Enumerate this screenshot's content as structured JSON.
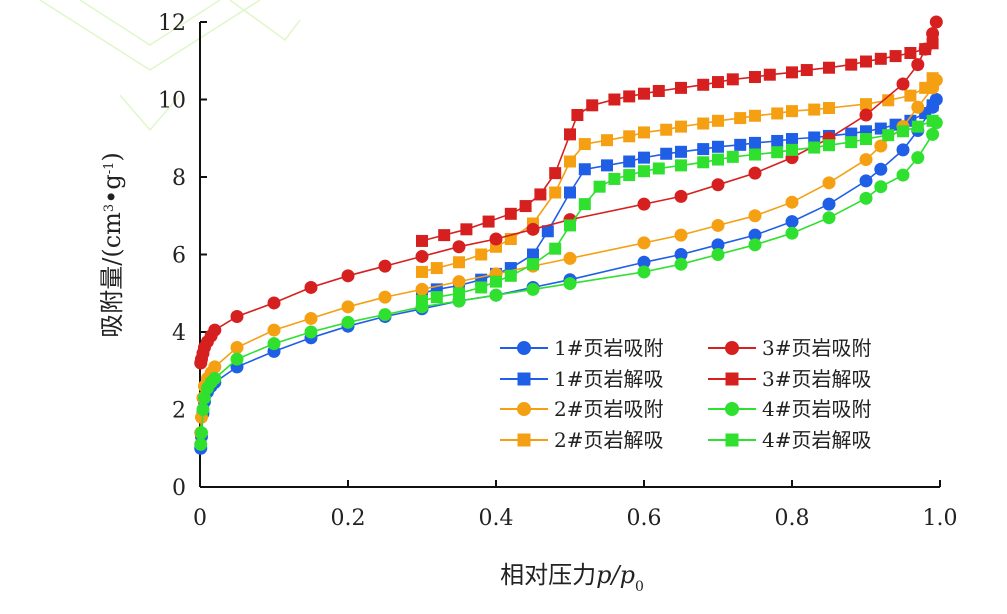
{
  "chart_data": {
    "type": "line",
    "title": "",
    "xlabel": "相对压力",
    "xlabel_italic": "p/p",
    "xlabel_sub": "0",
    "ylabel": "吸附量/(cm",
    "ylabel_sup1": "3",
    "ylabel_mid": "•g",
    "ylabel_sup2": "-1",
    "ylabel_end": ")",
    "xlim": [
      0,
      1.0
    ],
    "ylim": [
      0,
      12
    ],
    "xticks": [
      "0",
      "0.2",
      "0.4",
      "0.6",
      "0.8",
      "1.0"
    ],
    "yticks": [
      "0",
      "2",
      "4",
      "6",
      "8",
      "10",
      "12"
    ],
    "xtick_values": [
      0,
      0.2,
      0.4,
      0.6,
      0.8,
      1.0
    ],
    "ytick_values": [
      0,
      2,
      4,
      6,
      8,
      10,
      12
    ],
    "legend_position": "bottom-right",
    "series": [
      {
        "name": "1#页岩吸附",
        "color": "#1f5fe6",
        "marker": "circle",
        "x": [
          0.001,
          0.002,
          0.004,
          0.006,
          0.01,
          0.015,
          0.02,
          0.05,
          0.1,
          0.15,
          0.2,
          0.25,
          0.3,
          0.35,
          0.4,
          0.45,
          0.5,
          0.6,
          0.65,
          0.7,
          0.75,
          0.8,
          0.85,
          0.9,
          0.92,
          0.95,
          0.97,
          0.99,
          0.995
        ],
        "y": [
          1.0,
          1.3,
          1.9,
          2.2,
          2.45,
          2.6,
          2.7,
          3.1,
          3.5,
          3.85,
          4.15,
          4.4,
          4.6,
          4.8,
          4.95,
          5.15,
          5.35,
          5.8,
          6.0,
          6.25,
          6.5,
          6.85,
          7.3,
          7.9,
          8.2,
          8.7,
          9.2,
          9.8,
          10.0
        ]
      },
      {
        "name": "1#页岩解吸",
        "color": "#1f5fe6",
        "marker": "square",
        "x": [
          0.3,
          0.32,
          0.35,
          0.38,
          0.4,
          0.42,
          0.45,
          0.47,
          0.5,
          0.52,
          0.55,
          0.58,
          0.6,
          0.63,
          0.65,
          0.68,
          0.7,
          0.73,
          0.75,
          0.78,
          0.8,
          0.83,
          0.85,
          0.88,
          0.9,
          0.92,
          0.94,
          0.96,
          0.98,
          0.99
        ],
        "y": [
          5.0,
          5.1,
          5.2,
          5.35,
          5.5,
          5.65,
          6.0,
          6.6,
          7.6,
          8.2,
          8.3,
          8.4,
          8.5,
          8.6,
          8.65,
          8.72,
          8.78,
          8.83,
          8.88,
          8.93,
          8.98,
          9.02,
          9.06,
          9.12,
          9.18,
          9.25,
          9.35,
          9.45,
          9.65,
          9.85
        ]
      },
      {
        "name": "2#页岩吸附",
        "color": "#f5a012",
        "marker": "circle",
        "x": [
          0.001,
          0.002,
          0.004,
          0.006,
          0.01,
          0.015,
          0.02,
          0.05,
          0.1,
          0.15,
          0.2,
          0.25,
          0.3,
          0.35,
          0.4,
          0.45,
          0.5,
          0.6,
          0.65,
          0.7,
          0.75,
          0.8,
          0.85,
          0.9,
          0.92,
          0.95,
          0.97,
          0.99,
          0.995
        ],
        "y": [
          1.4,
          1.8,
          2.3,
          2.6,
          2.8,
          2.95,
          3.1,
          3.6,
          4.05,
          4.35,
          4.65,
          4.9,
          5.1,
          5.3,
          5.5,
          5.7,
          5.9,
          6.3,
          6.5,
          6.75,
          7.0,
          7.35,
          7.85,
          8.45,
          8.8,
          9.3,
          9.8,
          10.3,
          10.5
        ]
      },
      {
        "name": "2#页岩解吸",
        "color": "#f5a012",
        "marker": "square",
        "x": [
          0.3,
          0.32,
          0.35,
          0.38,
          0.4,
          0.42,
          0.45,
          0.48,
          0.5,
          0.52,
          0.55,
          0.58,
          0.6,
          0.63,
          0.65,
          0.68,
          0.7,
          0.73,
          0.75,
          0.78,
          0.8,
          0.83,
          0.85,
          0.9,
          0.93,
          0.96,
          0.98,
          0.99
        ],
        "y": [
          5.55,
          5.65,
          5.8,
          6.0,
          6.2,
          6.4,
          6.8,
          7.6,
          8.4,
          8.85,
          8.95,
          9.05,
          9.15,
          9.22,
          9.3,
          9.38,
          9.45,
          9.52,
          9.58,
          9.64,
          9.7,
          9.74,
          9.78,
          9.88,
          9.98,
          10.1,
          10.3,
          10.55
        ]
      },
      {
        "name": "3#页岩吸附",
        "color": "#d62020",
        "marker": "circle",
        "x": [
          0.001,
          0.002,
          0.004,
          0.006,
          0.01,
          0.015,
          0.02,
          0.05,
          0.1,
          0.15,
          0.2,
          0.25,
          0.3,
          0.35,
          0.4,
          0.45,
          0.5,
          0.6,
          0.65,
          0.7,
          0.75,
          0.8,
          0.85,
          0.9,
          0.95,
          0.97,
          0.98,
          0.99,
          0.995
        ],
        "y": [
          3.2,
          3.3,
          3.45,
          3.6,
          3.75,
          3.9,
          4.05,
          4.4,
          4.75,
          5.15,
          5.45,
          5.7,
          5.95,
          6.2,
          6.4,
          6.65,
          6.9,
          7.3,
          7.5,
          7.8,
          8.1,
          8.5,
          9.0,
          9.6,
          10.4,
          10.9,
          11.3,
          11.7,
          12.0
        ]
      },
      {
        "name": "3#页岩解吸",
        "color": "#d62020",
        "marker": "square",
        "x": [
          0.3,
          0.33,
          0.36,
          0.39,
          0.42,
          0.44,
          0.46,
          0.48,
          0.5,
          0.51,
          0.53,
          0.56,
          0.58,
          0.6,
          0.62,
          0.65,
          0.68,
          0.7,
          0.72,
          0.75,
          0.77,
          0.8,
          0.82,
          0.85,
          0.88,
          0.9,
          0.92,
          0.94,
          0.96,
          0.98,
          0.99
        ],
        "y": [
          6.35,
          6.5,
          6.65,
          6.85,
          7.05,
          7.25,
          7.55,
          8.1,
          9.1,
          9.6,
          9.85,
          10.0,
          10.08,
          10.15,
          10.22,
          10.3,
          10.38,
          10.45,
          10.52,
          10.58,
          10.64,
          10.7,
          10.76,
          10.82,
          10.9,
          10.98,
          11.05,
          11.12,
          11.2,
          11.3,
          11.45
        ]
      },
      {
        "name": "4#页岩吸附",
        "color": "#2fe02f",
        "marker": "circle",
        "x": [
          0.001,
          0.002,
          0.004,
          0.006,
          0.01,
          0.015,
          0.02,
          0.05,
          0.1,
          0.15,
          0.2,
          0.25,
          0.3,
          0.35,
          0.4,
          0.45,
          0.5,
          0.6,
          0.65,
          0.7,
          0.75,
          0.8,
          0.85,
          0.9,
          0.92,
          0.95,
          0.97,
          0.99,
          0.995
        ],
        "y": [
          1.1,
          1.4,
          2.0,
          2.3,
          2.55,
          2.7,
          2.8,
          3.3,
          3.7,
          4.0,
          4.25,
          4.45,
          4.65,
          4.8,
          4.95,
          5.1,
          5.25,
          5.55,
          5.75,
          6.0,
          6.25,
          6.55,
          6.95,
          7.45,
          7.75,
          8.05,
          8.5,
          9.1,
          9.4
        ]
      },
      {
        "name": "4#页岩解吸",
        "color": "#2fe02f",
        "marker": "square",
        "x": [
          0.3,
          0.32,
          0.35,
          0.38,
          0.4,
          0.42,
          0.45,
          0.48,
          0.5,
          0.52,
          0.54,
          0.56,
          0.58,
          0.6,
          0.62,
          0.65,
          0.68,
          0.7,
          0.72,
          0.75,
          0.78,
          0.8,
          0.83,
          0.85,
          0.88,
          0.9,
          0.93,
          0.95,
          0.97,
          0.99
        ],
        "y": [
          4.8,
          4.9,
          5.0,
          5.15,
          5.3,
          5.45,
          5.75,
          6.15,
          6.75,
          7.3,
          7.75,
          7.95,
          8.05,
          8.15,
          8.22,
          8.3,
          8.38,
          8.45,
          8.52,
          8.58,
          8.64,
          8.7,
          8.76,
          8.82,
          8.9,
          8.98,
          9.08,
          9.18,
          9.3,
          9.45
        ]
      }
    ]
  }
}
